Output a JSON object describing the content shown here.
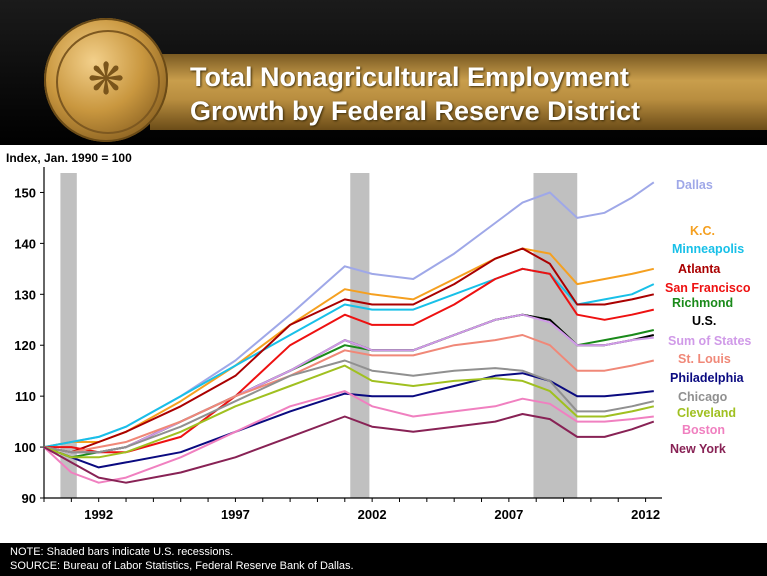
{
  "title": "Total Nonagricultural  Employment\nGrowth by Federal Reserve District",
  "footer": {
    "note": "NOTE: Shaded bars indicate U.S. recessions.",
    "source": "SOURCE: Bureau of Labor Statistics, Federal Reserve Bank of Dallas."
  },
  "chart_data": {
    "type": "line",
    "ylabel": "Index, Jan. 1990 = 100",
    "ylim": [
      90,
      155
    ],
    "yticks": [
      90,
      100,
      110,
      120,
      130,
      140,
      150
    ],
    "xlim": [
      1990.0,
      2012.6
    ],
    "xticks": [
      1992,
      1997,
      2002,
      2007,
      2012
    ],
    "recessions": [
      [
        1990.6,
        1991.2
      ],
      [
        2001.2,
        2001.9
      ],
      [
        2007.9,
        2009.5
      ]
    ],
    "colors": {
      "recession": "#c0c0c0"
    },
    "series": [
      {
        "name": "Dallas",
        "color": "#9fa8e8",
        "x": [
          1990,
          1991,
          1992,
          1993,
          1995,
          1997,
          1999,
          2001,
          2002,
          2003.5,
          2005,
          2006.5,
          2007.5,
          2008.5,
          2009.5,
          2010.5,
          2011.5,
          2012.3
        ],
        "y": [
          100,
          101,
          102,
          104,
          110,
          117,
          126,
          135.5,
          134,
          133,
          138,
          144,
          148,
          150,
          145,
          146,
          149,
          152
        ]
      },
      {
        "name": "K.C.",
        "color": "#f5a020",
        "x": [
          1990,
          1991,
          1992,
          1993,
          1995,
          1997,
          1999,
          2001,
          2002,
          2003.5,
          2005,
          2006.5,
          2007.5,
          2008.5,
          2009.5,
          2010.5,
          2011.5,
          2012.3
        ],
        "y": [
          100,
          101,
          101,
          103,
          109,
          116,
          124,
          131,
          130,
          129,
          133,
          137,
          139,
          138,
          132,
          133,
          134,
          135
        ]
      },
      {
        "name": "Minneapolis",
        "color": "#18c0e8",
        "x": [
          1990,
          1991,
          1992,
          1993,
          1995,
          1997,
          1999,
          2001,
          2002,
          2003.5,
          2005,
          2006.5,
          2007.5,
          2008.5,
          2009.5,
          2010.5,
          2011.5,
          2012.3
        ],
        "y": [
          100,
          101,
          102,
          104,
          110,
          116,
          122,
          128,
          127,
          127,
          130,
          133,
          135,
          134,
          128,
          129,
          130,
          132
        ]
      },
      {
        "name": "Atlanta",
        "color": "#aa0000",
        "x": [
          1990,
          1991,
          1992,
          1993,
          1995,
          1997,
          1999,
          2001,
          2002,
          2003.5,
          2005,
          2006.5,
          2007.5,
          2008.5,
          2009.5,
          2010.5,
          2011.5,
          2012.3
        ],
        "y": [
          100,
          99,
          101,
          103,
          108,
          114,
          124,
          129,
          128,
          128,
          132,
          137,
          139,
          136,
          128,
          128,
          129,
          130
        ]
      },
      {
        "name": "San Francisco",
        "color": "#ee1111",
        "x": [
          1990,
          1991,
          1992,
          1993,
          1995,
          1997,
          1999,
          2001,
          2002,
          2003.5,
          2005,
          2006.5,
          2007.5,
          2008.5,
          2009.5,
          2010.5,
          2011.5,
          2012.3
        ],
        "y": [
          100,
          100,
          99,
          99,
          102,
          110,
          120,
          126,
          124,
          124,
          128,
          133,
          135,
          134,
          126,
          125,
          126,
          127
        ]
      },
      {
        "name": "Richmond",
        "color": "#1a8a1a",
        "x": [
          1990,
          1991,
          1992,
          1993,
          1995,
          1997,
          1999,
          2001,
          2002,
          2003.5,
          2005,
          2006.5,
          2007.5,
          2008.5,
          2009.5,
          2010.5,
          2011.5,
          2012.3
        ],
        "y": [
          100,
          98,
          99,
          100,
          105,
          110,
          115,
          120,
          119,
          119,
          122,
          125,
          126,
          125,
          120,
          121,
          122,
          123
        ]
      },
      {
        "name": "U.S.",
        "color": "#000000",
        "x": [
          1990,
          1991,
          1992,
          1993,
          1995,
          1997,
          1999,
          2001,
          2002,
          2003.5,
          2005,
          2006.5,
          2007.5,
          2008.5,
          2009.5,
          2010.5,
          2011.5,
          2012.3
        ],
        "y": [
          100,
          99,
          99,
          100,
          105,
          110,
          115,
          121,
          119,
          119,
          122,
          125,
          126,
          125,
          120,
          120,
          121,
          122
        ]
      },
      {
        "name": "Sum of States",
        "color": "#d09ae8",
        "x": [
          1990,
          1991,
          1992,
          1993,
          1995,
          1997,
          1999,
          2001,
          2002,
          2003.5,
          2005,
          2006.5,
          2007.5,
          2008.5,
          2009.5,
          2010.5,
          2011.5,
          2012.3
        ],
        "y": [
          100,
          99,
          99,
          100,
          105,
          110,
          115,
          121,
          119,
          119,
          122,
          125,
          126,
          124.5,
          120,
          120,
          121,
          121.5
        ]
      },
      {
        "name": "St. Louis",
        "color": "#f08878",
        "x": [
          1990,
          1991,
          1992,
          1993,
          1995,
          1997,
          1999,
          2001,
          2002,
          2003.5,
          2005,
          2006.5,
          2007.5,
          2008.5,
          2009.5,
          2010.5,
          2011.5,
          2012.3
        ],
        "y": [
          100,
          99,
          100,
          101,
          105,
          110,
          114,
          119,
          118,
          118,
          120,
          121,
          122,
          120,
          115,
          115,
          116,
          117
        ]
      },
      {
        "name": "Philadelphia",
        "color": "#0a0a80",
        "x": [
          1990,
          1991,
          1992,
          1993,
          1995,
          1997,
          1999,
          2001,
          2002,
          2003.5,
          2005,
          2006.5,
          2007.5,
          2008.5,
          2009.5,
          2010.5,
          2011.5,
          2012.3
        ],
        "y": [
          100,
          98,
          96,
          97,
          99,
          103,
          107,
          110.5,
          110,
          110,
          112,
          114,
          114.5,
          113,
          110,
          110,
          110.5,
          111
        ]
      },
      {
        "name": "Chicago",
        "color": "#909090",
        "x": [
          1990,
          1991,
          1992,
          1993,
          1995,
          1997,
          1999,
          2001,
          2002,
          2003.5,
          2005,
          2006.5,
          2007.5,
          2008.5,
          2009.5,
          2010.5,
          2011.5,
          2012.3
        ],
        "y": [
          100,
          99,
          99,
          100,
          104,
          109,
          114,
          117,
          115,
          114,
          115,
          115.5,
          115,
          113,
          107,
          107,
          108,
          109
        ]
      },
      {
        "name": "Cleveland",
        "color": "#a0c020",
        "x": [
          1990,
          1991,
          1992,
          1993,
          1995,
          1997,
          1999,
          2001,
          2002,
          2003.5,
          2005,
          2006.5,
          2007.5,
          2008.5,
          2009.5,
          2010.5,
          2011.5,
          2012.3
        ],
        "y": [
          100,
          98,
          98,
          99,
          103,
          108,
          112,
          116,
          113,
          112,
          113,
          113.5,
          113,
          111,
          106,
          106,
          107,
          108
        ]
      },
      {
        "name": "Boston",
        "color": "#f080c0",
        "x": [
          1990,
          1991,
          1992,
          1993,
          1995,
          1997,
          1999,
          2001,
          2002,
          2003.5,
          2005,
          2006.5,
          2007.5,
          2008.5,
          2009.5,
          2010.5,
          2011.5,
          2012.3
        ],
        "y": [
          100,
          95,
          93,
          94,
          98,
          103,
          108,
          111,
          108,
          106,
          107,
          108,
          109.5,
          108.5,
          105,
          105,
          105.5,
          106
        ]
      },
      {
        "name": "New York",
        "color": "#882255",
        "x": [
          1990,
          1991,
          1992,
          1993,
          1995,
          1997,
          1999,
          2001,
          2002,
          2003.5,
          2005,
          2006.5,
          2007.5,
          2008.5,
          2009.5,
          2010.5,
          2011.5,
          2012.3
        ],
        "y": [
          100,
          97,
          94,
          93,
          95,
          98,
          102,
          106,
          104,
          103,
          104,
          105,
          106.5,
          105.5,
          102,
          102,
          103.5,
          105
        ]
      }
    ]
  }
}
